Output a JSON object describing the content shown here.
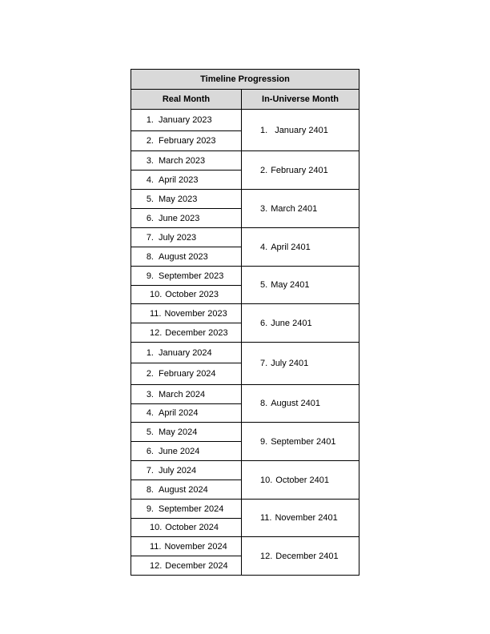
{
  "table": {
    "title": "Timeline Progression",
    "headers": [
      "Real Month",
      "In-Universe Month"
    ],
    "groups": [
      {
        "real": [
          {
            "num": "1.",
            "label": "January 2023"
          },
          {
            "num": "2.",
            "label": "February 2023"
          }
        ],
        "universe": {
          "num": "1.",
          "label": "January 2401"
        }
      },
      {
        "real": [
          {
            "num": "3.",
            "label": "March 2023"
          },
          {
            "num": "4.",
            "label": "April 2023"
          }
        ],
        "universe": {
          "num": "2.",
          "label": "February 2401"
        }
      },
      {
        "real": [
          {
            "num": "5.",
            "label": "May 2023"
          },
          {
            "num": "6.",
            "label": "June 2023"
          }
        ],
        "universe": {
          "num": "3.",
          "label": "March 2401"
        }
      },
      {
        "real": [
          {
            "num": "7.",
            "label": "July 2023"
          },
          {
            "num": "8.",
            "label": "August 2023"
          }
        ],
        "universe": {
          "num": "4.",
          "label": "April 2401"
        }
      },
      {
        "real": [
          {
            "num": "9.",
            "label": "September 2023"
          },
          {
            "num": "10.",
            "label": "October 2023"
          }
        ],
        "universe": {
          "num": "5.",
          "label": "May 2401"
        }
      },
      {
        "real": [
          {
            "num": "11.",
            "label": "November 2023"
          },
          {
            "num": "12.",
            "label": "December 2023"
          }
        ],
        "universe": {
          "num": "6.",
          "label": "June 2401"
        }
      },
      {
        "real": [
          {
            "num": "1.",
            "label": "January 2024"
          },
          {
            "num": "2.",
            "label": "February 2024"
          }
        ],
        "universe": {
          "num": "7.",
          "label": "July 2401"
        }
      },
      {
        "real": [
          {
            "num": "3.",
            "label": "March 2024"
          },
          {
            "num": "4.",
            "label": "April 2024"
          }
        ],
        "universe": {
          "num": "8.",
          "label": "August 2401"
        }
      },
      {
        "real": [
          {
            "num": "5.",
            "label": "May 2024"
          },
          {
            "num": "6.",
            "label": "June 2024"
          }
        ],
        "universe": {
          "num": "9.",
          "label": "September 2401"
        }
      },
      {
        "real": [
          {
            "num": "7.",
            "label": "July 2024"
          },
          {
            "num": "8.",
            "label": "August 2024"
          }
        ],
        "universe": {
          "num": "10.",
          "label": "October 2401"
        }
      },
      {
        "real": [
          {
            "num": "9.",
            "label": "September 2024"
          },
          {
            "num": "10.",
            "label": "October 2024"
          }
        ],
        "universe": {
          "num": "11.",
          "label": "November 2401"
        }
      },
      {
        "real": [
          {
            "num": "11.",
            "label": "November 2024"
          },
          {
            "num": "12.",
            "label": "December 2024"
          }
        ],
        "universe": {
          "num": "12.",
          "label": "December 2401"
        }
      }
    ]
  }
}
